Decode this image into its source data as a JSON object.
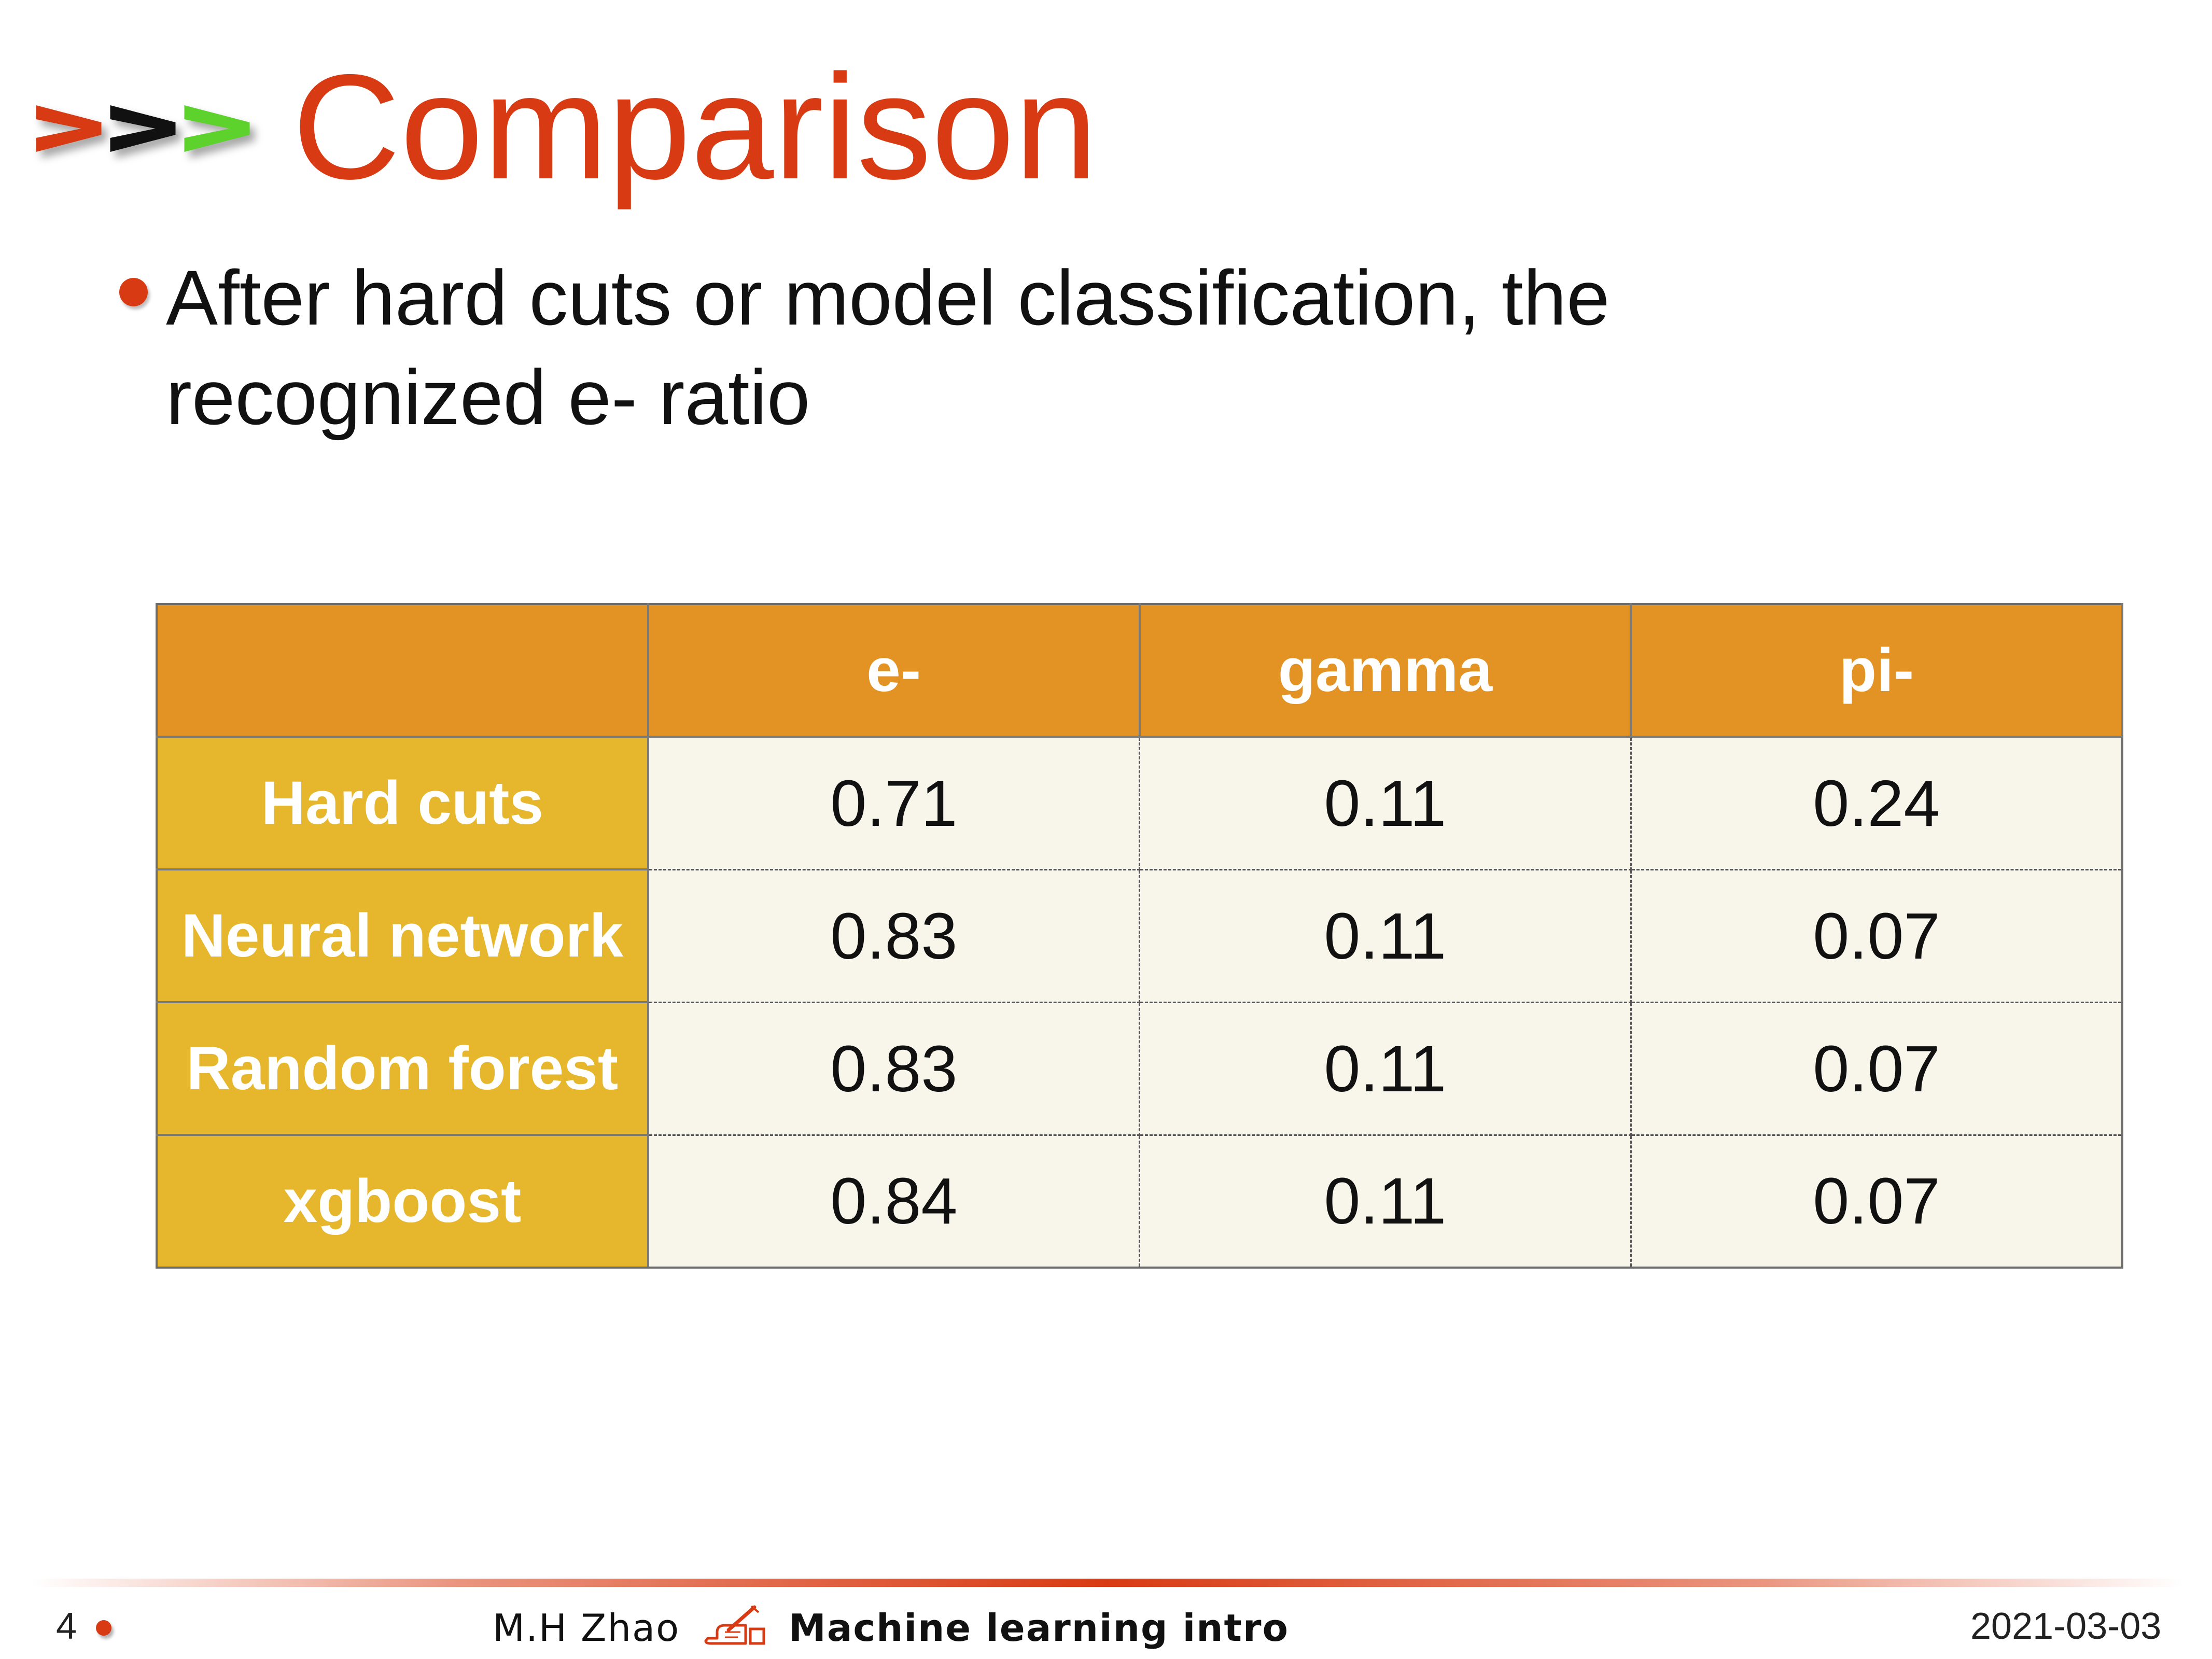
{
  "slide": {
    "title": "Comparison",
    "bullet": "After hard cuts or model classification, the\nrecognized e- ratio"
  },
  "colors": {
    "accent": "#d83b13",
    "chevron_red": "#d83b13",
    "chevron_black": "#111111",
    "chevron_green": "#5dd12c",
    "header_bg": "#e39224",
    "row_header_bg": "#e6b72d",
    "cell_bg": "#f8f6ea"
  },
  "table": {
    "columns": [
      "",
      "e-",
      "gamma",
      "pi-"
    ],
    "rows": [
      {
        "label": "Hard cuts",
        "values": [
          "0.71",
          "0.11",
          "0.24"
        ]
      },
      {
        "label": "Neural network",
        "values": [
          "0.83",
          "0.11",
          "0.07"
        ]
      },
      {
        "label": "Random forest",
        "values": [
          "0.83",
          "0.11",
          "0.07"
        ]
      },
      {
        "label": "xgboost",
        "values": [
          "0.84",
          "0.11",
          "0.07"
        ]
      }
    ]
  },
  "footer": {
    "page_number": "4",
    "author": "M.H Zhao",
    "course": "Machine learning intro",
    "date": "2021-03-03",
    "icon": "pen-writing-icon"
  }
}
